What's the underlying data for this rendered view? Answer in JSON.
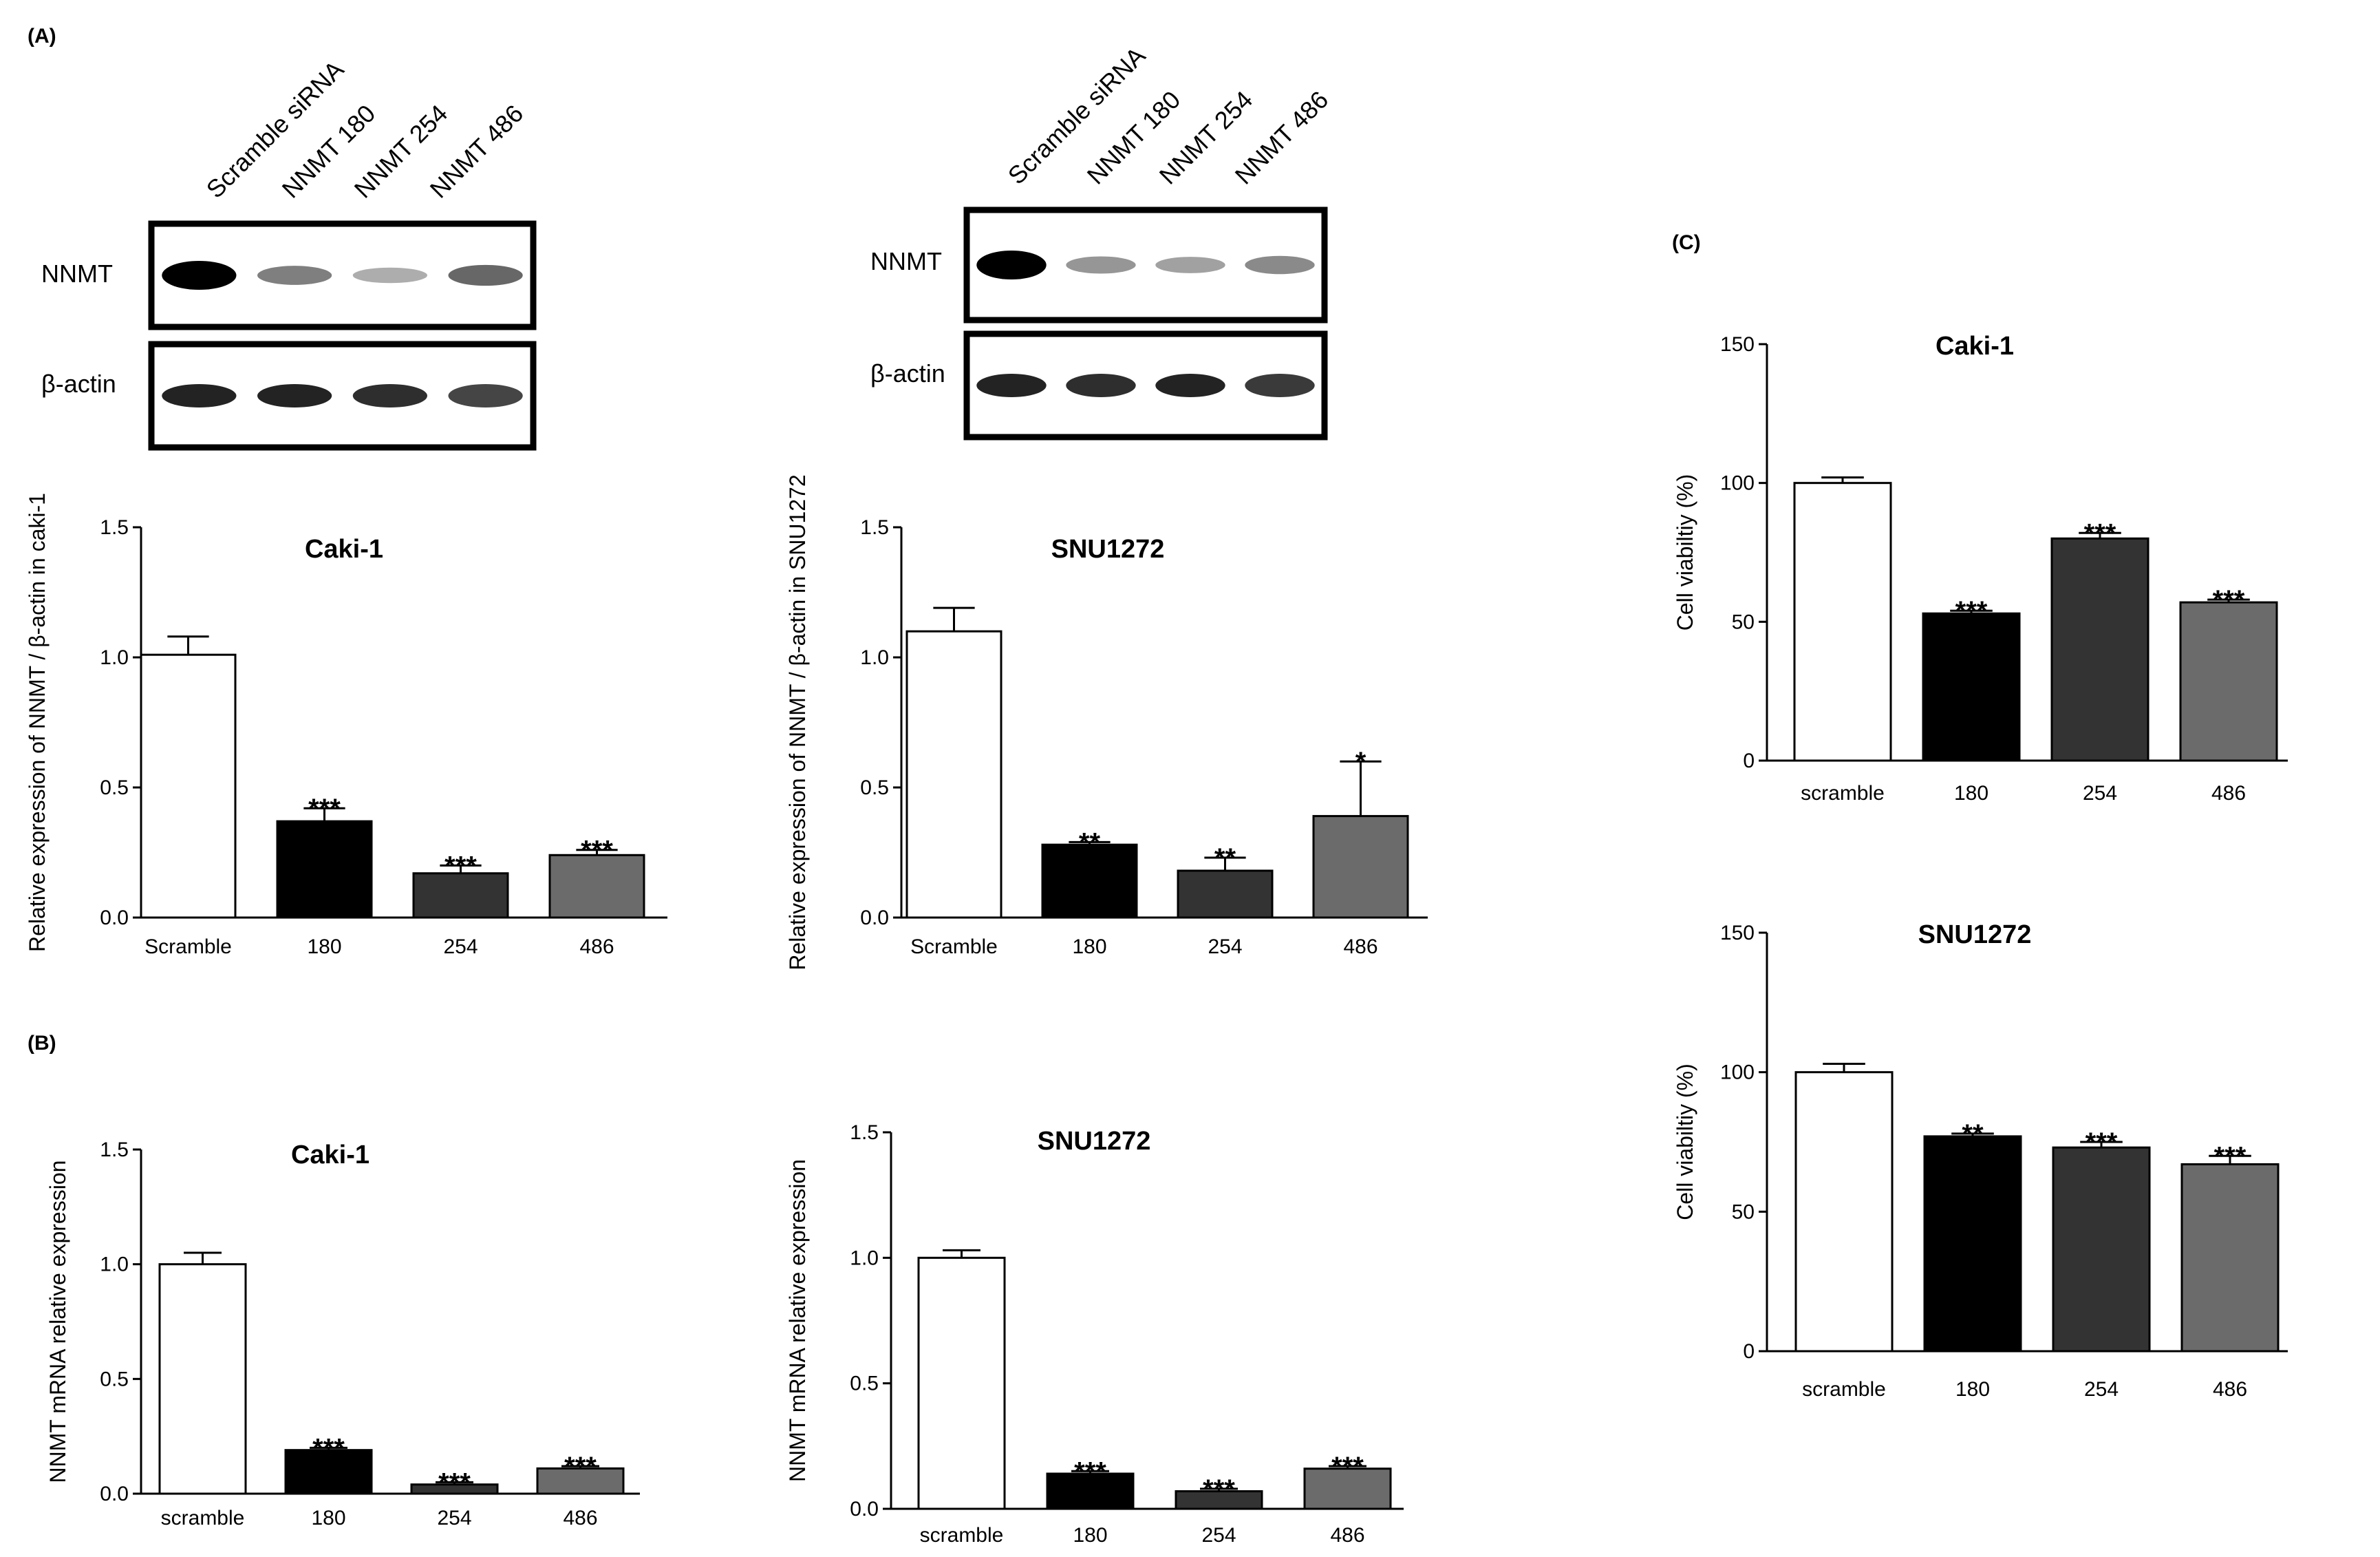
{
  "panels": {
    "A": "(A)",
    "B": "(B)",
    "C": "(C)"
  },
  "blots": [
    {
      "lanes": [
        "Scramble siRNA",
        "NNMT 180",
        "NNMT 254",
        "NNMT 486"
      ],
      "row1_label": "NNMT",
      "row2_label": "β-actin",
      "nnmt_intensity": [
        1.0,
        0.45,
        0.25,
        0.55
      ],
      "actin_intensity": [
        0.85,
        0.85,
        0.8,
        0.7
      ]
    },
    {
      "lanes": [
        "Scramble siRNA",
        "NNMT 180",
        "NNMT 254",
        "NNMT 486"
      ],
      "row1_label": "NNMT",
      "row2_label": "β-actin",
      "nnmt_intensity": [
        1.0,
        0.35,
        0.3,
        0.4
      ],
      "actin_intensity": [
        0.85,
        0.8,
        0.85,
        0.75
      ]
    }
  ],
  "chart_data": [
    {
      "type": "bar",
      "panel": "A",
      "title": "Caki-1",
      "ylabel": "Relative expression of NNMT / β-actin in caki-1",
      "ylim": [
        0,
        1.5
      ],
      "yticks": [
        "0.0",
        "0.5",
        "1.0",
        "1.5"
      ],
      "categories": [
        "Scramble",
        "180",
        "254",
        "486"
      ],
      "values": [
        1.01,
        0.37,
        0.17,
        0.24
      ],
      "errors": [
        0.07,
        0.05,
        0.03,
        0.02
      ],
      "significance": [
        "",
        "***",
        "***",
        "***"
      ],
      "colors": [
        "#ffffff",
        "#000000",
        "#333333",
        "#6b6b6b"
      ]
    },
    {
      "type": "bar",
      "panel": "A",
      "title": "SNU1272",
      "ylabel": "Relative expression of NNMT / β-actin in SNU1272",
      "ylim": [
        0,
        1.5
      ],
      "yticks": [
        "0.0",
        "0.5",
        "1.0",
        "1.5"
      ],
      "categories": [
        "Scramble",
        "180",
        "254",
        "486"
      ],
      "values": [
        1.1,
        0.28,
        0.18,
        0.39
      ],
      "errors": [
        0.09,
        0.01,
        0.05,
        0.21
      ],
      "significance": [
        "",
        "**",
        "**",
        "*"
      ],
      "colors": [
        "#ffffff",
        "#000000",
        "#333333",
        "#6b6b6b"
      ]
    },
    {
      "type": "bar",
      "panel": "B",
      "title": "Caki-1",
      "ylabel": "NNMT mRNA relative expression",
      "ylim": [
        0,
        1.5
      ],
      "yticks": [
        "0.0",
        "0.5",
        "1.0",
        "1.5"
      ],
      "categories": [
        "scramble",
        "180",
        "254",
        "486"
      ],
      "values": [
        1.0,
        0.19,
        0.04,
        0.11
      ],
      "errors": [
        0.05,
        0.01,
        0.01,
        0.01
      ],
      "significance": [
        "",
        "***",
        "***",
        "***"
      ],
      "colors": [
        "#ffffff",
        "#000000",
        "#333333",
        "#6b6b6b"
      ]
    },
    {
      "type": "bar",
      "panel": "B",
      "title": "SNU1272",
      "ylabel": "NNMT mRNA relative expression",
      "ylim": [
        0,
        1.5
      ],
      "yticks": [
        "0.0",
        "0.5",
        "1.0",
        "1.5"
      ],
      "categories": [
        "scramble",
        "180",
        "254",
        "486"
      ],
      "values": [
        1.0,
        0.14,
        0.07,
        0.16
      ],
      "errors": [
        0.03,
        0.01,
        0.01,
        0.01
      ],
      "significance": [
        "",
        "***",
        "***",
        "***"
      ],
      "colors": [
        "#ffffff",
        "#000000",
        "#333333",
        "#6b6b6b"
      ]
    },
    {
      "type": "bar",
      "panel": "C",
      "title": "Caki-1",
      "ylabel": "Cell viabiltiy (%)",
      "ylim": [
        0,
        150
      ],
      "yticks": [
        "0",
        "50",
        "100",
        "150"
      ],
      "categories": [
        "scramble",
        "180",
        "254",
        "486"
      ],
      "values": [
        100,
        53,
        80,
        57
      ],
      "errors": [
        2,
        1,
        2,
        1
      ],
      "significance": [
        "",
        "***",
        "***",
        "***"
      ],
      "colors": [
        "#ffffff",
        "#000000",
        "#333333",
        "#6b6b6b"
      ]
    },
    {
      "type": "bar",
      "panel": "C",
      "title": "SNU1272",
      "ylabel": "Cell viabiltiy (%)",
      "ylim": [
        0,
        150
      ],
      "yticks": [
        "0",
        "50",
        "100",
        "150"
      ],
      "categories": [
        "scramble",
        "180",
        "254",
        "486"
      ],
      "values": [
        100,
        77,
        73,
        67
      ],
      "errors": [
        3,
        1,
        2,
        3
      ],
      "significance": [
        "",
        "**",
        "***",
        "***"
      ],
      "colors": [
        "#ffffff",
        "#000000",
        "#333333",
        "#6b6b6b"
      ]
    }
  ]
}
